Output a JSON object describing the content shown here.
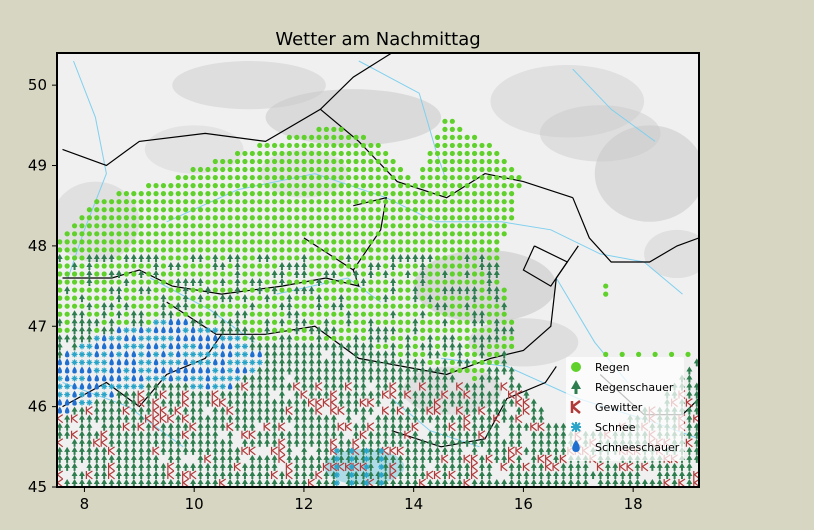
{
  "title": "Wetter am Nachmittag",
  "axes": {
    "x": {
      "range": [
        7.5,
        19.2
      ],
      "ticks": [
        "8",
        "10",
        "12",
        "14",
        "16",
        "18"
      ],
      "tick_values": [
        8,
        10,
        12,
        14,
        16,
        18
      ]
    },
    "y": {
      "range": [
        45,
        50.4
      ],
      "ticks": [
        "45",
        "46",
        "47",
        "48",
        "49",
        "50"
      ],
      "tick_values": [
        45,
        46,
        47,
        48,
        49,
        50
      ]
    }
  },
  "legend": {
    "placement": "bottom-right",
    "items": [
      {
        "label": "Regen",
        "color": "#5fd12a",
        "symbol": "dot"
      },
      {
        "label": "Regenschauer",
        "color": "#2e7d4f",
        "symbol": "tree"
      },
      {
        "label": "Gewitter",
        "color": "#b03a3a",
        "symbol": "k"
      },
      {
        "label": "Schnee",
        "color": "#2aa5c9",
        "symbol": "asterisk"
      },
      {
        "label": "Schneeschauer",
        "color": "#1f6fd0",
        "symbol": "drop"
      }
    ]
  },
  "colors": {
    "background": "#d6d6c2",
    "map_base": "#f0f0f0",
    "terrain": "#c8c8c8",
    "rivers": "#7fd0ef",
    "borders": "#000000"
  }
}
